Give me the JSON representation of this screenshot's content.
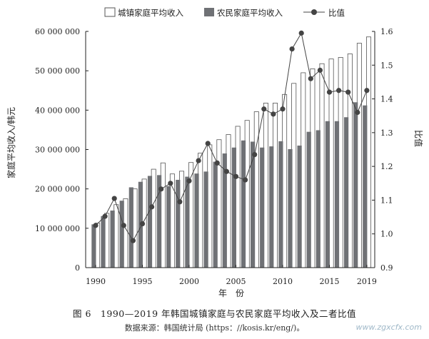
{
  "chart_data": {
    "type": "bar",
    "title": "图 6　1990—2019 年韩国城镇家庭与农民家庭平均收入及二者比值",
    "source": "数据来源：韩国统计局 (https：//kosis.kr/eng/)。",
    "xlabel": "年　份",
    "ylabel": "家庭平均收入/韩元",
    "y2label": "比值",
    "x": [
      1990,
      1991,
      1992,
      1993,
      1994,
      1995,
      1996,
      1997,
      1998,
      1999,
      2000,
      2001,
      2002,
      2003,
      2004,
      2005,
      2006,
      2007,
      2008,
      2009,
      2010,
      2011,
      2012,
      2013,
      2014,
      2015,
      2016,
      2017,
      2018,
      2019
    ],
    "x_ticks": [
      1990,
      1995,
      2000,
      2005,
      2010,
      2015,
      2019
    ],
    "ylim": [
      0,
      60000000
    ],
    "y_ticks": [
      0,
      10000000,
      20000000,
      30000000,
      40000000,
      50000000,
      60000000
    ],
    "y_tick_labels": [
      "0",
      "10 000 000",
      "20 000 000",
      "30 000 000",
      "40 000 000",
      "50 000 000",
      "60 000 000"
    ],
    "y2lim": [
      0.9,
      1.6
    ],
    "y2_ticks": [
      0.9,
      1.0,
      1.1,
      1.2,
      1.3,
      1.4,
      1.5,
      1.6
    ],
    "y2_tick_labels": [
      "0.9",
      "1.0",
      "1.1",
      "1.2",
      "1.3",
      "1.4",
      "1.5",
      "1.6"
    ],
    "legend_position": "top",
    "series": [
      {
        "name": "城镇家庭平均收入",
        "kind": "bar",
        "color": "#ffffff",
        "stroke": "#555555",
        "values": [
          11300000,
          13800000,
          16000000,
          17500000,
          20000000,
          22500000,
          25000000,
          26600000,
          23800000,
          24500000,
          26700000,
          29100000,
          31200000,
          32500000,
          33800000,
          35900000,
          37400000,
          39600000,
          41800000,
          41800000,
          44000000,
          46800000,
          49500000,
          50500000,
          51800000,
          53000000,
          53400000,
          54300000,
          57000000,
          58600000
        ]
      },
      {
        "name": "农民家庭平均收入",
        "kind": "bar",
        "color": "#6f7175",
        "values": [
          11000000,
          13100000,
          14500000,
          17000000,
          20400000,
          21800000,
          23300000,
          23500000,
          20700000,
          22300000,
          23100000,
          23900000,
          24400000,
          26900000,
          29000000,
          30500000,
          32300000,
          32000000,
          30500000,
          30800000,
          32100000,
          30100000,
          31000000,
          34500000,
          34900000,
          37200000,
          37200000,
          38200000,
          42000000,
          41200000
        ]
      },
      {
        "name": "比值",
        "kind": "line",
        "axis": "right",
        "color": "#444444",
        "values": [
          1.025,
          1.052,
          1.105,
          1.025,
          0.98,
          1.03,
          1.08,
          1.133,
          1.15,
          1.095,
          1.157,
          1.217,
          1.268,
          1.21,
          1.185,
          1.17,
          1.16,
          1.235,
          1.37,
          1.355,
          1.37,
          1.548,
          1.595,
          1.46,
          1.485,
          1.42,
          1.425,
          1.42,
          1.36,
          1.425
        ]
      }
    ]
  },
  "watermark": "www.zgxcfx.com"
}
